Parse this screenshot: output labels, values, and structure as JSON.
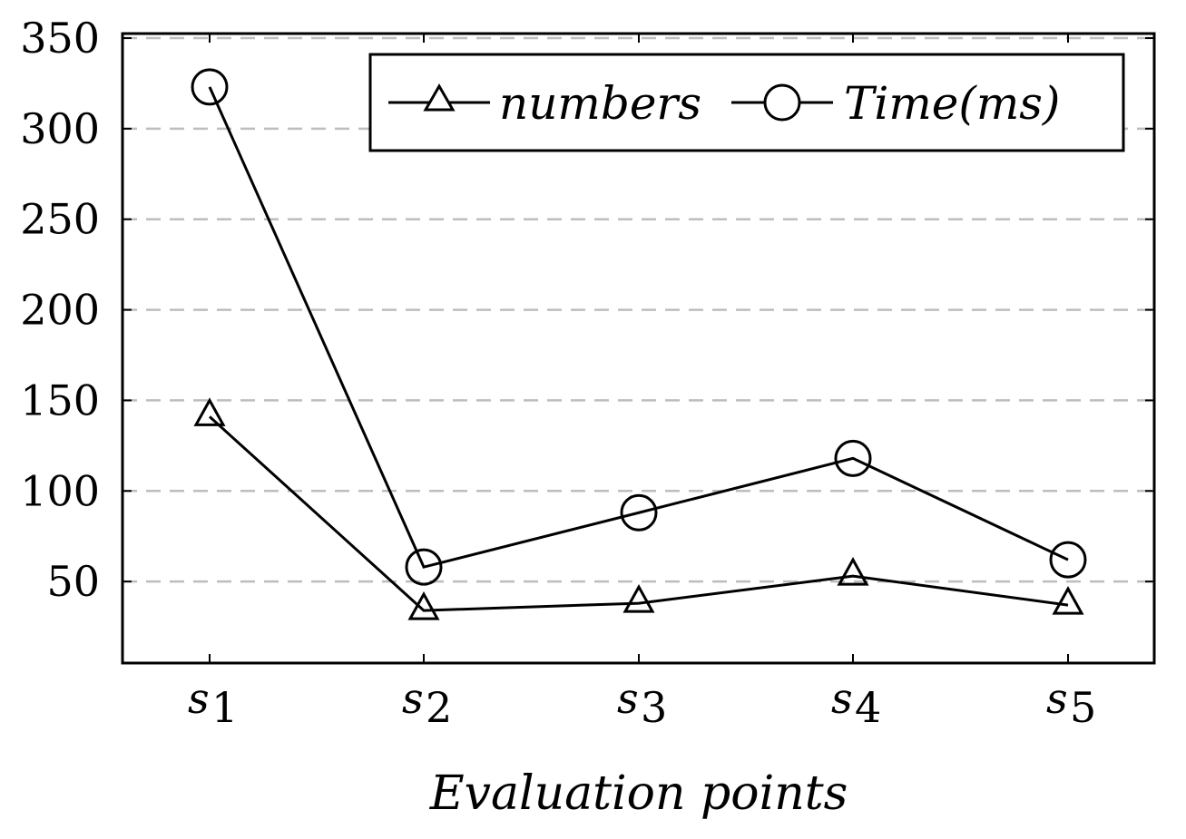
{
  "chart_data": {
    "type": "line",
    "title": "",
    "xlabel": "Evaluation points",
    "ylabel": "",
    "categories": [
      "s",
      "s",
      "s",
      "s",
      "s"
    ],
    "category_subscripts": [
      "1",
      "2",
      "3",
      "4",
      "5"
    ],
    "ylim": [
      5,
      350
    ],
    "y_ticks": [
      "50",
      "100",
      "150",
      "200",
      "250",
      "300",
      "350"
    ],
    "grid": "horizontal dashed",
    "legend_position": "top-right",
    "series": [
      {
        "name": "numbers",
        "marker": "triangle",
        "values": [
          141,
          34,
          38,
          53,
          37
        ]
      },
      {
        "name": "Time(ms)",
        "marker": "circle",
        "values": [
          323,
          58,
          88,
          118,
          62
        ]
      }
    ],
    "colors": {
      "line": "#000000",
      "grid": "#bdbdbd",
      "background": "#ffffff"
    }
  }
}
